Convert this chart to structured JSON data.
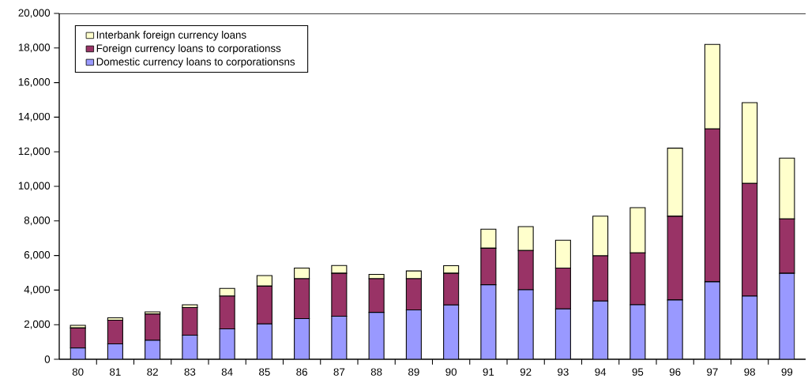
{
  "chart_data": {
    "type": "bar",
    "stacked": true,
    "categories": [
      "80",
      "81",
      "82",
      "83",
      "84",
      "85",
      "86",
      "87",
      "88",
      "89",
      "90",
      "91",
      "92",
      "93",
      "94",
      "95",
      "96",
      "97",
      "98",
      "99"
    ],
    "series": [
      {
        "name": "Domestic currency loans to corporationsns",
        "color": "#9999ff",
        "values": [
          650,
          890,
          1100,
          1390,
          1760,
          2040,
          2350,
          2490,
          2710,
          2850,
          3140,
          4310,
          4020,
          2910,
          3370,
          3150,
          3430,
          4480,
          3650,
          4970
        ]
      },
      {
        "name": "Foreign currency loans to corporationss",
        "color": "#993366",
        "values": [
          1160,
          1370,
          1520,
          1600,
          1890,
          2190,
          2310,
          2480,
          1950,
          1810,
          1830,
          2110,
          2270,
          2360,
          2610,
          3000,
          4840,
          8840,
          6520,
          3150
        ]
      },
      {
        "name": "Interbank foreign currency loans",
        "color": "#ffffcc",
        "values": [
          150,
          140,
          120,
          160,
          450,
          610,
          610,
          450,
          250,
          450,
          440,
          1100,
          1380,
          1610,
          2300,
          2620,
          3940,
          4890,
          4670,
          3510
        ]
      }
    ],
    "ylim": [
      0,
      20000
    ],
    "yticks": [
      0,
      {
        "value": 2000,
        "label": "2,000"
      },
      {
        "value": 4000,
        "label": "4,000"
      },
      {
        "value": 6000,
        "label": "6,000"
      },
      {
        "value": 8000,
        "label": "8,000"
      },
      {
        "value": 10000,
        "label": "10,000"
      },
      {
        "value": 12000,
        "label": "12,000"
      },
      {
        "value": 14000,
        "label": "14,000"
      },
      {
        "value": 16000,
        "label": "16,000"
      },
      {
        "value": 18000,
        "label": "18,000"
      },
      {
        "value": 20000,
        "label": "20,000"
      }
    ],
    "legend": "top left",
    "grid": false
  }
}
